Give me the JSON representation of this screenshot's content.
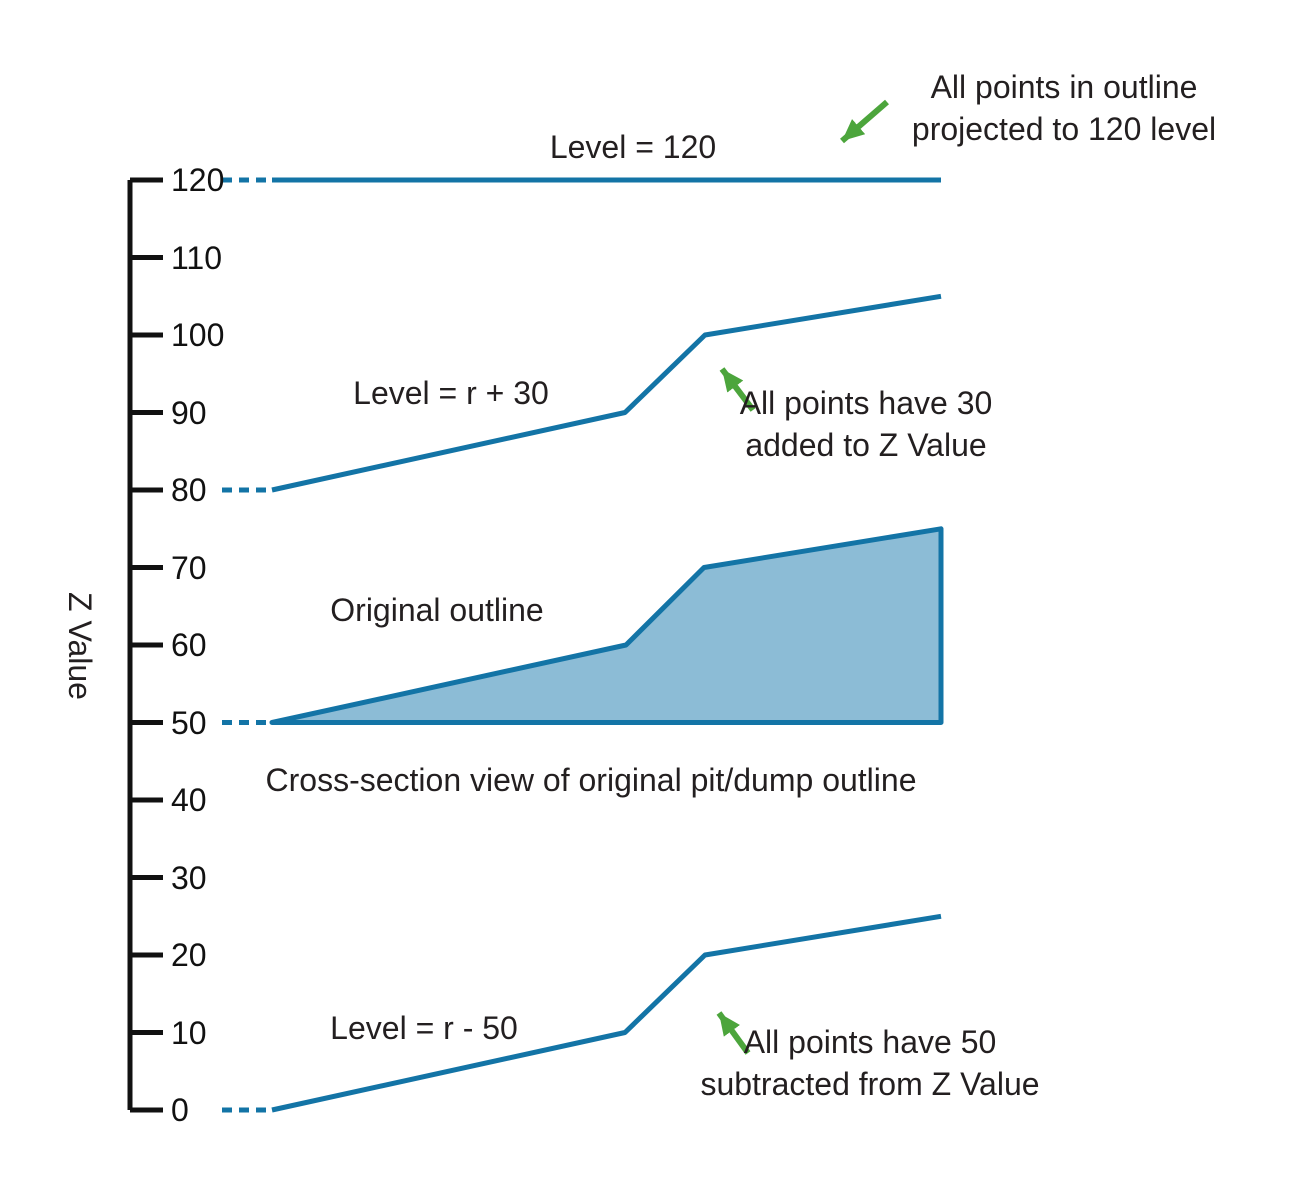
{
  "figure": {
    "labels": {
      "level_120": "Level = 120",
      "level_r_plus_30": "Level = r + 30",
      "original_outline": "Original outline",
      "caption": "Cross-section view of original pit/dump outline",
      "level_r_minus_50": "Level = r - 50"
    },
    "annotations": {
      "projected_lines": [
        "All points in outline",
        "projected to 120 level"
      ],
      "add30_lines": [
        "All points have 30",
        "added to Z Value"
      ],
      "sub50_lines": [
        "All points have 50",
        "subtracted from Z Value"
      ]
    },
    "colors": {
      "line_blue": "#1374A6",
      "fill_blue": "#8CBCD6",
      "arrow_green": "#4CA53C",
      "text": "#231F20",
      "axis": "#111111"
    }
  },
  "chart_data": {
    "type": "line",
    "ylabel": "Z Value",
    "ylim": [
      0,
      120
    ],
    "yticks": [
      120,
      110,
      100,
      90,
      80,
      70,
      60,
      50,
      40,
      30,
      20,
      10,
      0
    ],
    "grid": false,
    "legend": "none",
    "series": [
      {
        "name": "Level = 120",
        "description": "All points in outline projected to 120 level",
        "dash": [
          [
            222,
            120
          ],
          [
            272,
            120
          ]
        ],
        "solid": [
          [
            272,
            120
          ],
          [
            941,
            120
          ]
        ]
      },
      {
        "name": "Level = r + 30",
        "description": "All points have 30 added to Z Value",
        "dash": [
          [
            222,
            80
          ],
          [
            272,
            80
          ]
        ],
        "solid": [
          [
            272,
            80
          ],
          [
            625,
            90
          ],
          [
            705,
            100
          ],
          [
            941,
            105
          ]
        ]
      },
      {
        "name": "Original outline",
        "description": "Cross-section view of original pit/dump outline",
        "dash": [
          [
            222,
            50
          ],
          [
            272,
            50
          ]
        ],
        "solid": [
          [
            272,
            50
          ],
          [
            626,
            60
          ],
          [
            704,
            70
          ],
          [
            941,
            75
          ]
        ],
        "fill_to": 50
      },
      {
        "name": "Level = r - 50",
        "description": "All points have 50 subtracted from Z Value",
        "dash": [
          [
            222,
            0
          ],
          [
            272,
            0
          ]
        ],
        "solid": [
          [
            272,
            0
          ],
          [
            625,
            10
          ],
          [
            705,
            20
          ],
          [
            941,
            25
          ]
        ]
      }
    ]
  }
}
